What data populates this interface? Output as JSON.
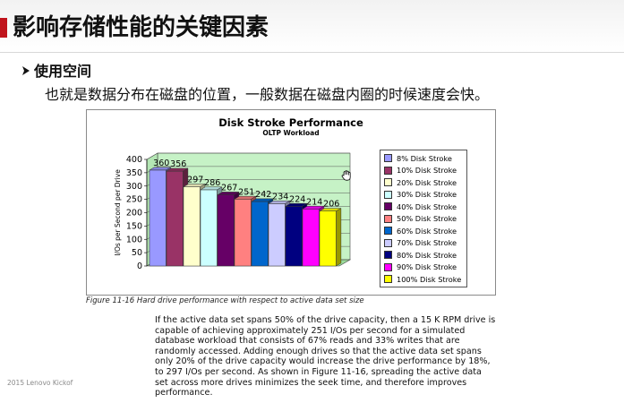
{
  "slide": {
    "title": "影响存储性能的关键因素",
    "bullet": "使用空间",
    "body": "也就是数据分布在磁盘的位置，一般数据在磁盘内圈的时候速度会快。",
    "footer": "2015 Lenovo  Kickof"
  },
  "figure": {
    "caption": "Figure 11-16   Hard drive performance with respect to active data set size",
    "paragraph": "If the active data set spans 50% of the drive capacity, then a 15 K RPM drive is capable of achieving approximately 251 I/Os per second for a simulated database workload that consists of 67% reads and 33% writes that are randomly accessed. Adding enough drives so that the active data set spans only 20% of the drive capacity would increase the drive performance by 18%, to 297 I/Os per second. As shown in Figure 11-16, spreading the active data set across more drives minimizes the seek time, and therefore improves performance."
  },
  "colors": {
    "accent_red": "#c0141c",
    "wall": "#c6f2c6"
  },
  "icons": {
    "cursor": "hand-cursor-icon"
  },
  "chart_data": {
    "type": "bar",
    "title": "Disk Stroke Performance",
    "subtitle": "OLTP Workload",
    "xlabel": "",
    "ylabel": "I/Os per Second per Drive",
    "ylim": [
      0,
      400
    ],
    "yticks": [
      "0",
      "50",
      "100",
      "150",
      "200",
      "250",
      "300",
      "350",
      "400"
    ],
    "grid": true,
    "legend_position": "right",
    "series": [
      {
        "name": "8% Disk Stroke",
        "value": 360,
        "color": "#9999ff"
      },
      {
        "name": "10% Disk Stroke",
        "value": 356,
        "color": "#993366"
      },
      {
        "name": "20% Disk Stroke",
        "value": 297,
        "color": "#ffffcc"
      },
      {
        "name": "30% Disk Stroke",
        "value": 286,
        "color": "#ccffff"
      },
      {
        "name": "40% Disk Stroke",
        "value": 267,
        "color": "#660066"
      },
      {
        "name": "50% Disk Stroke",
        "value": 251,
        "color": "#ff8080"
      },
      {
        "name": "60% Disk Stroke",
        "value": 242,
        "color": "#0066cc"
      },
      {
        "name": "70% Disk Stroke",
        "value": 234,
        "color": "#ccccff"
      },
      {
        "name": "80% Disk Stroke",
        "value": 224,
        "color": "#000080"
      },
      {
        "name": "90% Disk Stroke",
        "value": 214,
        "color": "#ff00ff"
      },
      {
        "name": "100% Disk Stroke",
        "value": 206,
        "color": "#ffff00"
      }
    ]
  }
}
